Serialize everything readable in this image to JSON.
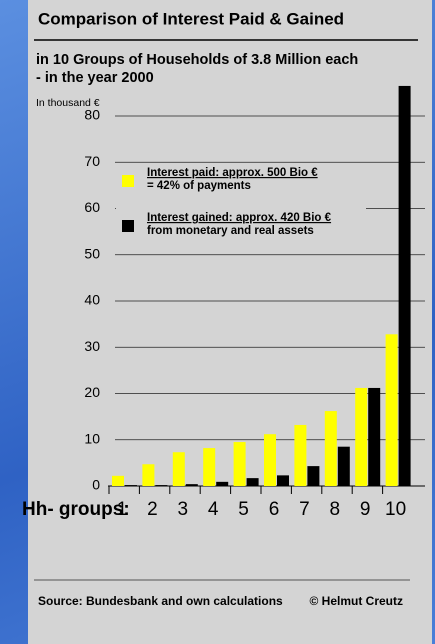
{
  "chart_data": {
    "type": "bar",
    "title": "Comparison of Interest Paid & Gained",
    "subtitle": [
      "in 10 Groups of Households of 3.8 Million each",
      "- in the year 2000"
    ],
    "y_label": "In thousand €",
    "x_label": "Hh- groups:",
    "categories": [
      "1",
      "2",
      "3",
      "4",
      "5",
      "6",
      "7",
      "8",
      "9",
      "10"
    ],
    "series": [
      {
        "name": "Interest paid: approx. 500 Bio €",
        "note": "= 42% of payments",
        "color": "#ffff00",
        "values": [
          2.2,
          4.7,
          7.3,
          8.2,
          9.5,
          11.2,
          13.2,
          16.2,
          21.2,
          32.8
        ]
      },
      {
        "name": "Interest gained: approx. 420 Bio €",
        "note": "from monetary and real assets",
        "color": "#000000",
        "values": [
          0.2,
          0.2,
          0.4,
          0.9,
          1.7,
          2.3,
          4.3,
          8.5,
          21.2,
          86.5
        ]
      }
    ],
    "ylim": [
      0,
      88
    ],
    "yticks": [
      0,
      10,
      20,
      30,
      40,
      50,
      60,
      70,
      80
    ],
    "grid": true,
    "source": "Source: Bundesbank and own calculations",
    "credit": "©  Helmut Creutz"
  }
}
